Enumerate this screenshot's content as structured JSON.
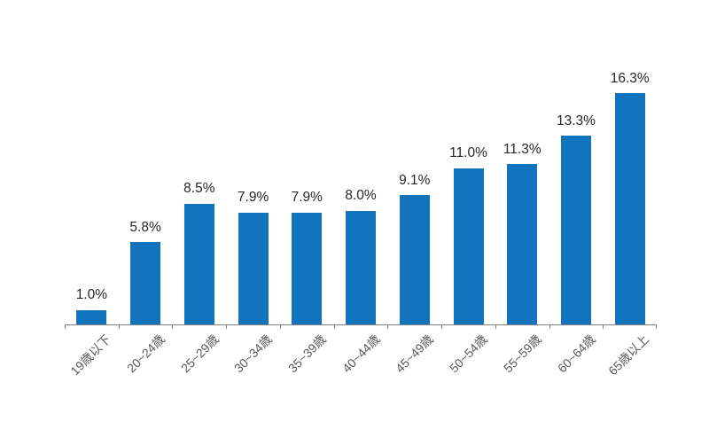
{
  "chart_data": {
    "type": "bar",
    "categories": [
      "19歳以下",
      "20~24歳",
      "25~29歳",
      "30~34歳",
      "35~39歳",
      "40~44歳",
      "45~49歳",
      "50~54歳",
      "55~59歳",
      "60~64歳",
      "65歳以上"
    ],
    "values": [
      1.0,
      5.8,
      8.5,
      7.9,
      7.9,
      8.0,
      9.1,
      11.0,
      11.3,
      13.3,
      16.3
    ],
    "value_labels": [
      "1.0%",
      "5.8%",
      "8.5%",
      "7.9%",
      "7.9%",
      "8.0%",
      "9.1%",
      "11.0%",
      "11.3%",
      "13.3%",
      "16.3%"
    ],
    "title": "",
    "xlabel": "",
    "ylabel": "",
    "ylim": [
      0,
      18
    ],
    "grid": false,
    "legend_position": "none",
    "data_label_position": "above-bar",
    "x_tick_rotation_deg": 45,
    "colors": {
      "bar": "#1274BC",
      "value_label": "#262626",
      "axis_label": "#595959",
      "axis_line": "#808080",
      "background": "#FFFFFF"
    }
  }
}
